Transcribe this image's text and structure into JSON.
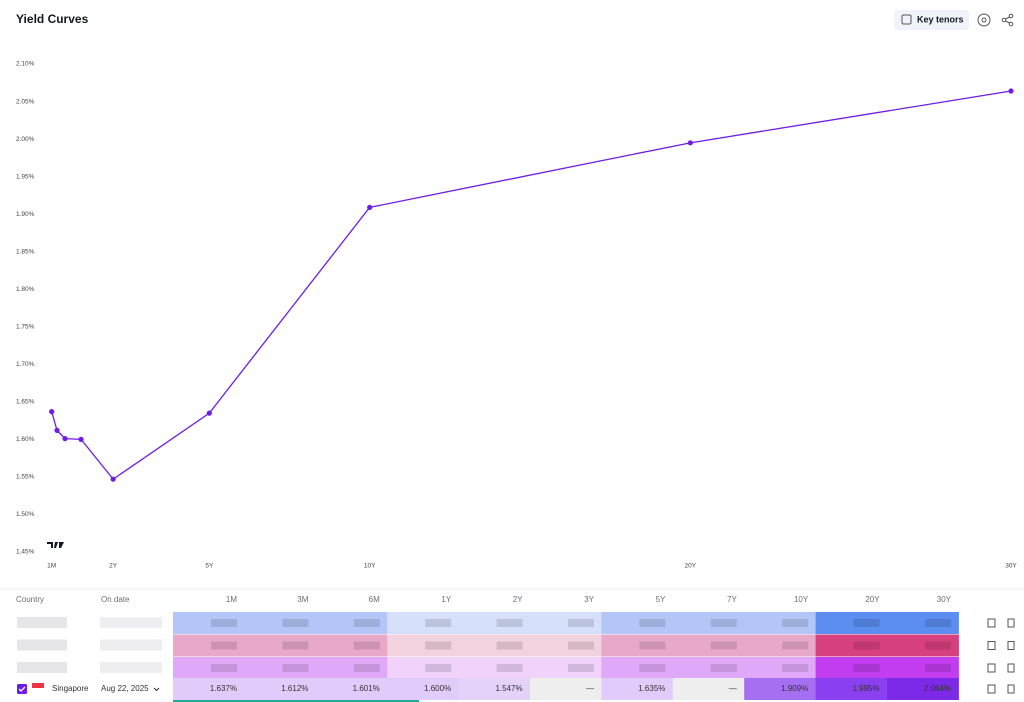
{
  "header": {
    "title": "Yield Curves",
    "button": "Key tenors"
  },
  "chart_data": {
    "type": "line",
    "x": [
      0.0833,
      0.25,
      0.5,
      1,
      2,
      5,
      10,
      20,
      30
    ],
    "values": [
      1.637,
      1.612,
      1.601,
      1.6,
      1.547,
      1.635,
      1.909,
      1.995,
      2.064
    ],
    "color": "#6f1de6",
    "xlim": [
      0,
      30
    ],
    "xticks": [
      {
        "value": 0.0833,
        "label": "1M"
      },
      {
        "value": 2,
        "label": "2Y"
      },
      {
        "value": 5,
        "label": "5Y"
      },
      {
        "value": 10,
        "label": "10Y"
      },
      {
        "value": 20,
        "label": "20Y"
      },
      {
        "value": 30,
        "label": "30Y"
      }
    ],
    "ylim": [
      1.45,
      2.1
    ],
    "yticks": [
      {
        "value": 1.45,
        "label": "1.45%"
      },
      {
        "value": 1.5,
        "label": "1.50%"
      },
      {
        "value": 1.55,
        "label": "1.55%"
      },
      {
        "value": 1.6,
        "label": "1.60%"
      },
      {
        "value": 1.65,
        "label": "1.65%"
      },
      {
        "value": 1.7,
        "label": "1.70%"
      },
      {
        "value": 1.75,
        "label": "1.75%"
      },
      {
        "value": 1.8,
        "label": "1.80%"
      },
      {
        "value": 1.85,
        "label": "1.85%"
      },
      {
        "value": 1.9,
        "label": "1.90%"
      },
      {
        "value": 1.95,
        "label": "1.95%"
      },
      {
        "value": 2.0,
        "label": "2.00%"
      },
      {
        "value": 2.05,
        "label": "2.05%"
      },
      {
        "value": 2.1,
        "label": "2.10%"
      }
    ],
    "grid": false
  },
  "table": {
    "columns": [
      "Country",
      "On date",
      "1M",
      "3M",
      "6M",
      "1Y",
      "2Y",
      "3Y",
      "5Y",
      "7Y",
      "10Y",
      "20Y",
      "30Y"
    ],
    "rows": [
      [
        "Singapore",
        "Aug 22, 2025",
        "1.637%",
        "1.612%",
        "1.601%",
        "1.600%",
        "1.547%",
        "—",
        "1.635%",
        "—",
        "1.909%",
        "1.995%",
        "2.064%"
      ]
    ]
  }
}
